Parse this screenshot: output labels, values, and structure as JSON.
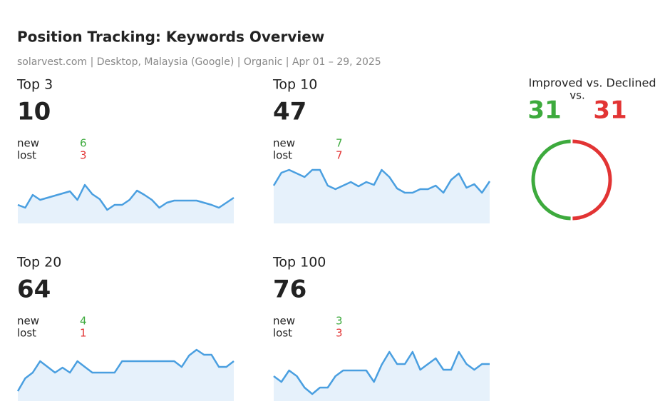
{
  "header": {
    "title": "Position Tracking: Keywords Overview",
    "subtitle": "solarvest.com | Desktop, Malaysia (Google) | Organic | Apr 01 – 29, 2025"
  },
  "cards": [
    {
      "label": "Top 3",
      "value": 10,
      "new_label": "new",
      "new": 6,
      "lost_label": "lost",
      "lost": 3,
      "trend": [
        26,
        22,
        40,
        33,
        36,
        39,
        42,
        45,
        33,
        54,
        41,
        34,
        19,
        26,
        26,
        33,
        46,
        40,
        33,
        22,
        29,
        32,
        32,
        32,
        32,
        29,
        26,
        22,
        29,
        36
      ]
    },
    {
      "label": "Top 10",
      "value": 47,
      "new_label": "new",
      "new": 7,
      "lost_label": "lost",
      "lost": 7,
      "trend": [
        53,
        71,
        75,
        70,
        65,
        75,
        75,
        53,
        48,
        53,
        58,
        52,
        58,
        54,
        75,
        65,
        49,
        43,
        43,
        48,
        48,
        53,
        43,
        61,
        70,
        50,
        55,
        43,
        59
      ]
    },
    {
      "label": "Top 20",
      "value": 64,
      "new_label": "new",
      "new": 4,
      "lost_label": "lost",
      "lost": 1,
      "trend": [
        14,
        32,
        40,
        56,
        48,
        40,
        47,
        40,
        56,
        48,
        40,
        40,
        40,
        40,
        56,
        56,
        56,
        56,
        56,
        56,
        56,
        56,
        48,
        64,
        72,
        65,
        65,
        48,
        48,
        56
      ]
    },
    {
      "label": "Top 100",
      "value": 76,
      "new_label": "new",
      "new": 3,
      "lost_label": "lost",
      "lost": 3,
      "trend": [
        35,
        27,
        43,
        35,
        19,
        10,
        19,
        19,
        35,
        43,
        43,
        43,
        43,
        27,
        51,
        69,
        52,
        52,
        69,
        44,
        52,
        60,
        44,
        44,
        69,
        52,
        44,
        52,
        52
      ]
    }
  ],
  "ratio": {
    "title": "Improved vs. Declined",
    "separator": "vs.",
    "improved": 31,
    "declined": 31,
    "improved_color": "#3daa3d",
    "declined_color": "#e23434"
  }
}
